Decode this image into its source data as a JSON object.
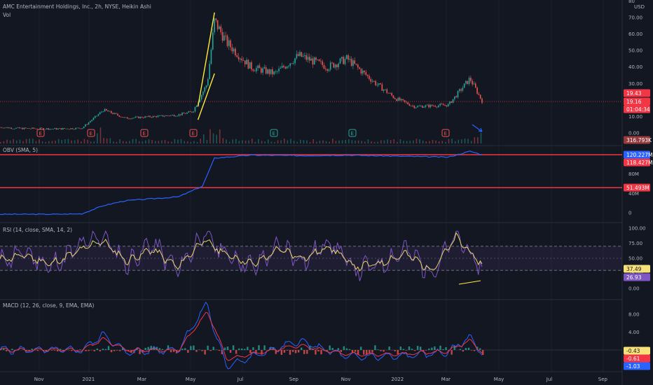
{
  "main": {
    "title": "AMC Entertainment Holdings, Inc., 2h, NYSE, Heikin Ashi",
    "vol_label": "Vol",
    "y_ticks": [
      "80",
      "70.00",
      "60.00",
      "50.00",
      "40.00",
      "30.00",
      "20.00",
      "10.00",
      "0.00"
    ],
    "currency": "USD",
    "price_tags": [
      {
        "text": "19.43",
        "color": "#f23645"
      },
      {
        "text": "19.16",
        "color": "#f23645"
      },
      {
        "text": "01:04:34",
        "color": "#f23645"
      }
    ],
    "volume_tag": "316.793K",
    "earnings_markers": [
      "E",
      "E",
      "E",
      "E",
      "E",
      "E",
      "E",
      "E"
    ]
  },
  "obv": {
    "title": "OBV (SMA, 5)",
    "y_ticks": [
      "80M",
      "40M",
      "0"
    ],
    "tags": [
      {
        "text": "120.227M",
        "color": "#2962ff"
      },
      {
        "text": "118.427M",
        "color": "#f23645"
      },
      {
        "text": "51.493M",
        "color": "#f23645"
      }
    ]
  },
  "rsi": {
    "title": "RSI (14, close, SMA, 14, 2)",
    "y_ticks": [
      "100.00",
      "75.00",
      "50.00",
      "25.00",
      "0.00"
    ],
    "tags": [
      {
        "text": "37.49",
        "color": "#f7e27a"
      },
      {
        "text": "26.93",
        "color": "#7e57c2"
      }
    ]
  },
  "macd": {
    "title": "MACD (12, 26, close, 9, EMA, EMA)",
    "y_ticks": [
      "8.00",
      "4.00",
      "0.00",
      "-4.00"
    ],
    "tags": [
      {
        "text": "-0.43",
        "color": "#f7e27a"
      },
      {
        "text": "-0.61",
        "color": "#f23645"
      },
      {
        "text": "-1.03",
        "color": "#2962ff"
      }
    ]
  },
  "x_axis": {
    "labels": [
      "Nov",
      "2021",
      "Mar",
      "May",
      "Jul",
      "Sep",
      "Nov",
      "2022",
      "Mar",
      "May",
      "Jul",
      "Sep"
    ]
  },
  "colors": {
    "bg": "#131722",
    "up": "#26a69a",
    "down": "#ef5350",
    "trend": "#ffeb3b",
    "obv": "#2962ff",
    "rsi": "#7e57c2",
    "rsi_ma": "#e6d36a",
    "level": "#f23645"
  },
  "chart_data": [
    {
      "type": "candlestick",
      "title": "AMC Entertainment Holdings, Inc., 2h, NYSE, Heikin Ashi",
      "ylabel": "USD",
      "ylim": [
        0,
        80
      ],
      "x": [
        "Oct 2020",
        "Nov",
        "Dec",
        "Jan 2021",
        "late Jan",
        "Feb",
        "Mar",
        "Apr",
        "May",
        "late May",
        "early Jun",
        "mid Jun",
        "Jul",
        "Aug",
        "Sep",
        "Oct",
        "Nov",
        "Dec",
        "Jan 2022",
        "Feb",
        "Mar",
        "Mar 28",
        "Apr"
      ],
      "close": [
        3.5,
        2.8,
        2.5,
        3.0,
        14,
        9,
        10,
        11,
        13,
        30,
        68,
        55,
        40,
        36,
        47,
        40,
        45,
        30,
        21,
        16,
        17,
        33,
        19.43
      ],
      "trendlines": [
        {
          "from": {
            "x": "early Jun",
            "y": 73
          },
          "to": {
            "x": "Apr",
            "y": 16
          }
        },
        {
          "from": {
            "x": "early Jun",
            "y": 36
          },
          "to": {
            "x": "Apr",
            "y": 8
          }
        }
      ]
    },
    {
      "type": "line",
      "title": "OBV (SMA, 5)",
      "ylim": [
        0,
        130
      ],
      "y_unit": "M",
      "x": [
        "Oct 2020",
        "Dec",
        "Jan 2021",
        "late Jan",
        "Mar",
        "May",
        "late May",
        "early Jun",
        "Jul",
        "Sep",
        "Nov",
        "Jan 2022",
        "Mar",
        "Mar 28",
        "Apr"
      ],
      "values": [
        -3,
        -3,
        -2,
        15,
        25,
        33,
        55,
        113,
        119,
        118,
        119,
        117,
        115,
        127,
        120.227
      ],
      "levels": [
        118.427,
        51.493
      ]
    },
    {
      "type": "line",
      "title": "RSI (14, close, SMA, 14, 2)",
      "ylim": [
        0,
        100
      ],
      "levels": [
        70,
        50,
        30
      ],
      "x": [
        "Oct 2020",
        "Nov",
        "Dec",
        "Jan 2021",
        "Feb",
        "Mar",
        "Apr",
        "May",
        "Jun",
        "Jul",
        "Aug",
        "Sep",
        "Oct",
        "Nov",
        "Dec",
        "Jan 2022",
        "Feb",
        "Mar",
        "Mar 28",
        "Apr"
      ],
      "series": [
        {
          "values": [
            45,
            60,
            35,
            65,
            90,
            40,
            75,
            30,
            90,
            55,
            35,
            70,
            45,
            80,
            30,
            40,
            65,
            25,
            90,
            26.93
          ]
        },
        {
          "values": [
            48,
            55,
            40,
            60,
            80,
            45,
            65,
            35,
            80,
            55,
            40,
            65,
            50,
            70,
            35,
            42,
            58,
            30,
            85,
            37.49
          ]
        }
      ]
    },
    {
      "type": "line",
      "title": "MACD (12, 26, close, 9, EMA, EMA)",
      "ylim": [
        -5,
        10
      ],
      "x": [
        "Oct 2020",
        "Nov",
        "Dec",
        "Jan 2021",
        "late Jan",
        "Mar",
        "May",
        "early Jun",
        "mid Jun",
        "Jul",
        "Sep",
        "Nov",
        "Jan 2022",
        "Mar",
        "Mar 28",
        "Apr"
      ],
      "series": [
        {
          "values": [
            0,
            0,
            0,
            0,
            3.5,
            -0.5,
            0.2,
            10.5,
            4,
            -3.5,
            2,
            -1.5,
            -1.5,
            -0.5,
            3,
            -1.03
          ]
        },
        {
          "values": [
            0,
            0,
            0,
            0,
            2.5,
            0,
            0,
            8.5,
            5,
            -2,
            1,
            -1,
            -1,
            -0.3,
            2.2,
            -0.61
          ]
        }
      ],
      "histogram_last": -0.43
    }
  ]
}
